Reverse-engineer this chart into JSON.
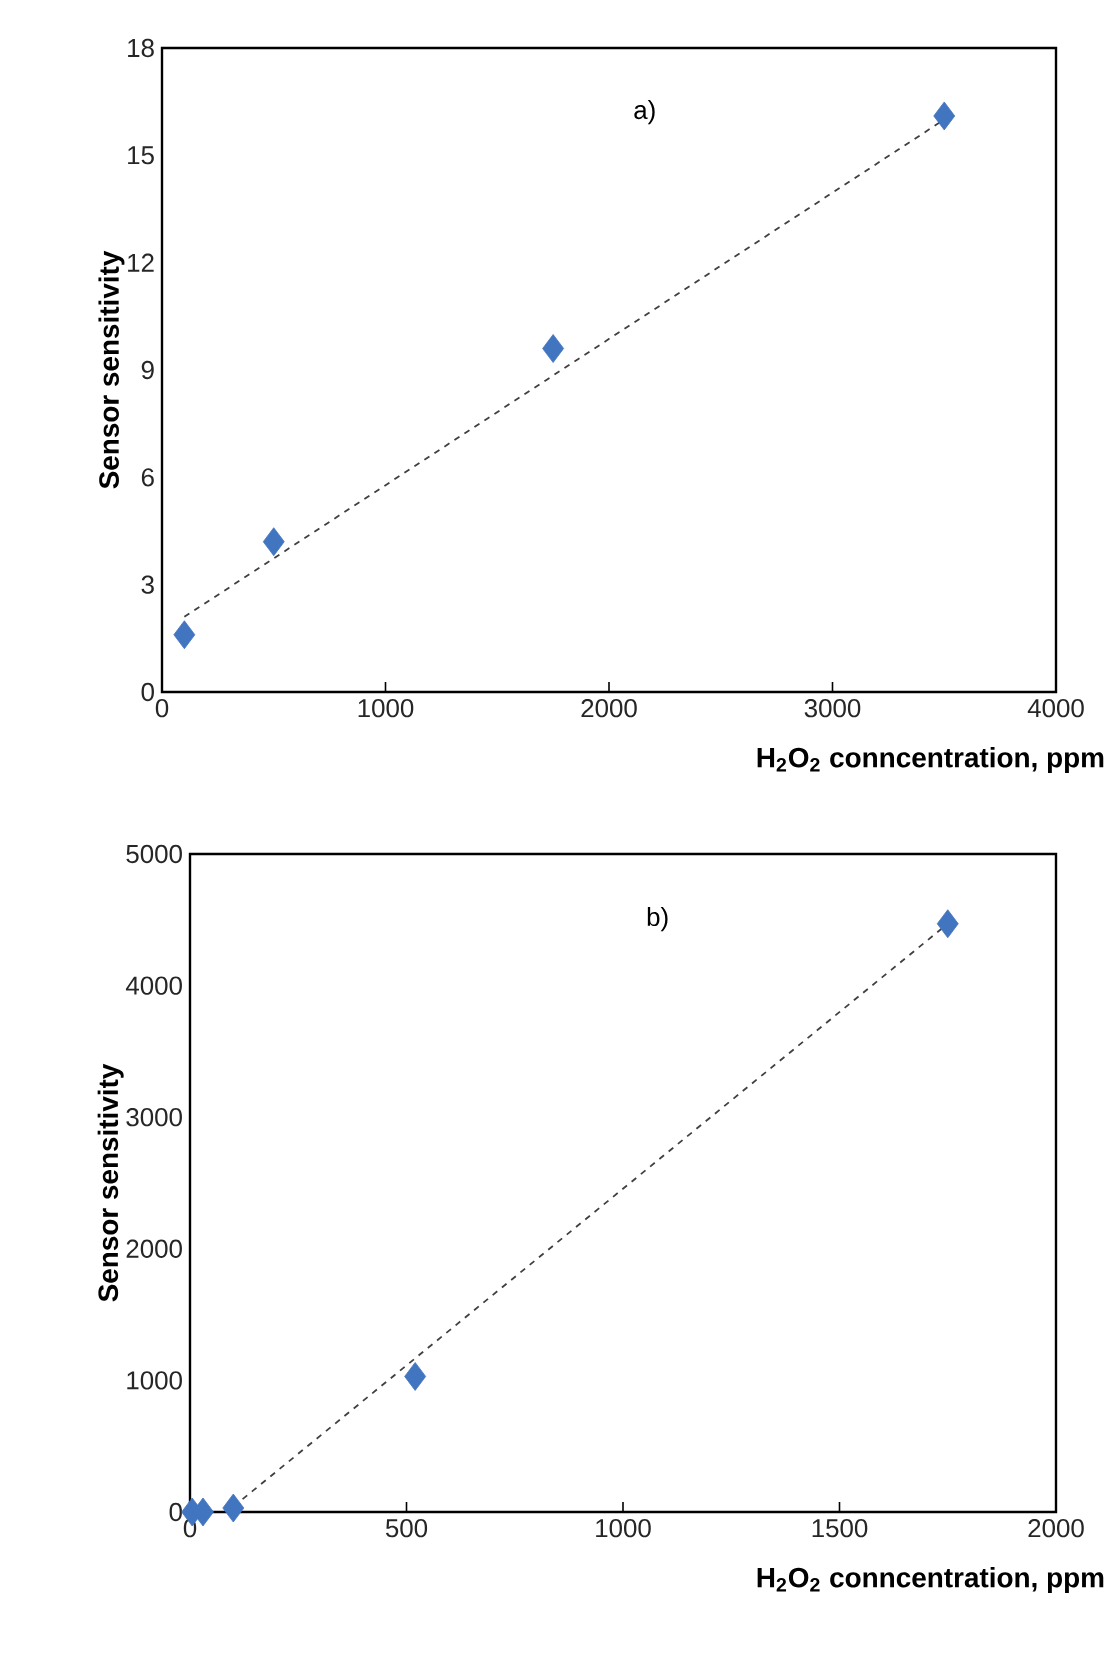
{
  "chart_data": [
    {
      "type": "scatter",
      "title": "a)",
      "xlabel": "H$_{2}$O$_{2}$ conncentration, ppm",
      "ylabel": "Sensor sensitivity",
      "xlim": [
        0,
        4000
      ],
      "ylim": [
        0,
        18
      ],
      "xticks": [
        0,
        1000,
        2000,
        3000,
        4000
      ],
      "yticks": [
        0,
        3,
        6,
        9,
        12,
        15,
        18
      ],
      "marker": "diamond",
      "series": [
        {
          "color": "#4275c0",
          "x": [
            100,
            500,
            1750,
            3500
          ],
          "values": [
            1.6,
            4.2,
            9.6,
            16.1
          ]
        },
        {
          "type": "line",
          "line_style": "dashed",
          "marker": "none",
          "color": "#404040",
          "x": [
            100,
            3500
          ],
          "values": [
            2.1,
            16.0
          ]
        }
      ]
    },
    {
      "type": "scatter",
      "title": "b)",
      "xlabel": "H$_{2}$O$_{2}$ conncentration, ppm",
      "ylabel": "Sensor sensitivity",
      "xlim": [
        0,
        2000
      ],
      "ylim": [
        0,
        5000
      ],
      "xticks": [
        0,
        500,
        1000,
        1500,
        2000
      ],
      "yticks": [
        0,
        1000,
        2000,
        3000,
        4000,
        5000
      ],
      "marker": "diamond",
      "series": [
        {
          "color": "#4275c0",
          "x": [
            5,
            30,
            100,
            520,
            1750
          ],
          "values": [
            0,
            0,
            30,
            1030,
            4470
          ]
        },
        {
          "type": "line",
          "line_style": "dashed",
          "marker": "none",
          "color": "#404040",
          "x": [
            100,
            1750
          ],
          "values": [
            40,
            4470
          ]
        }
      ]
    }
  ]
}
